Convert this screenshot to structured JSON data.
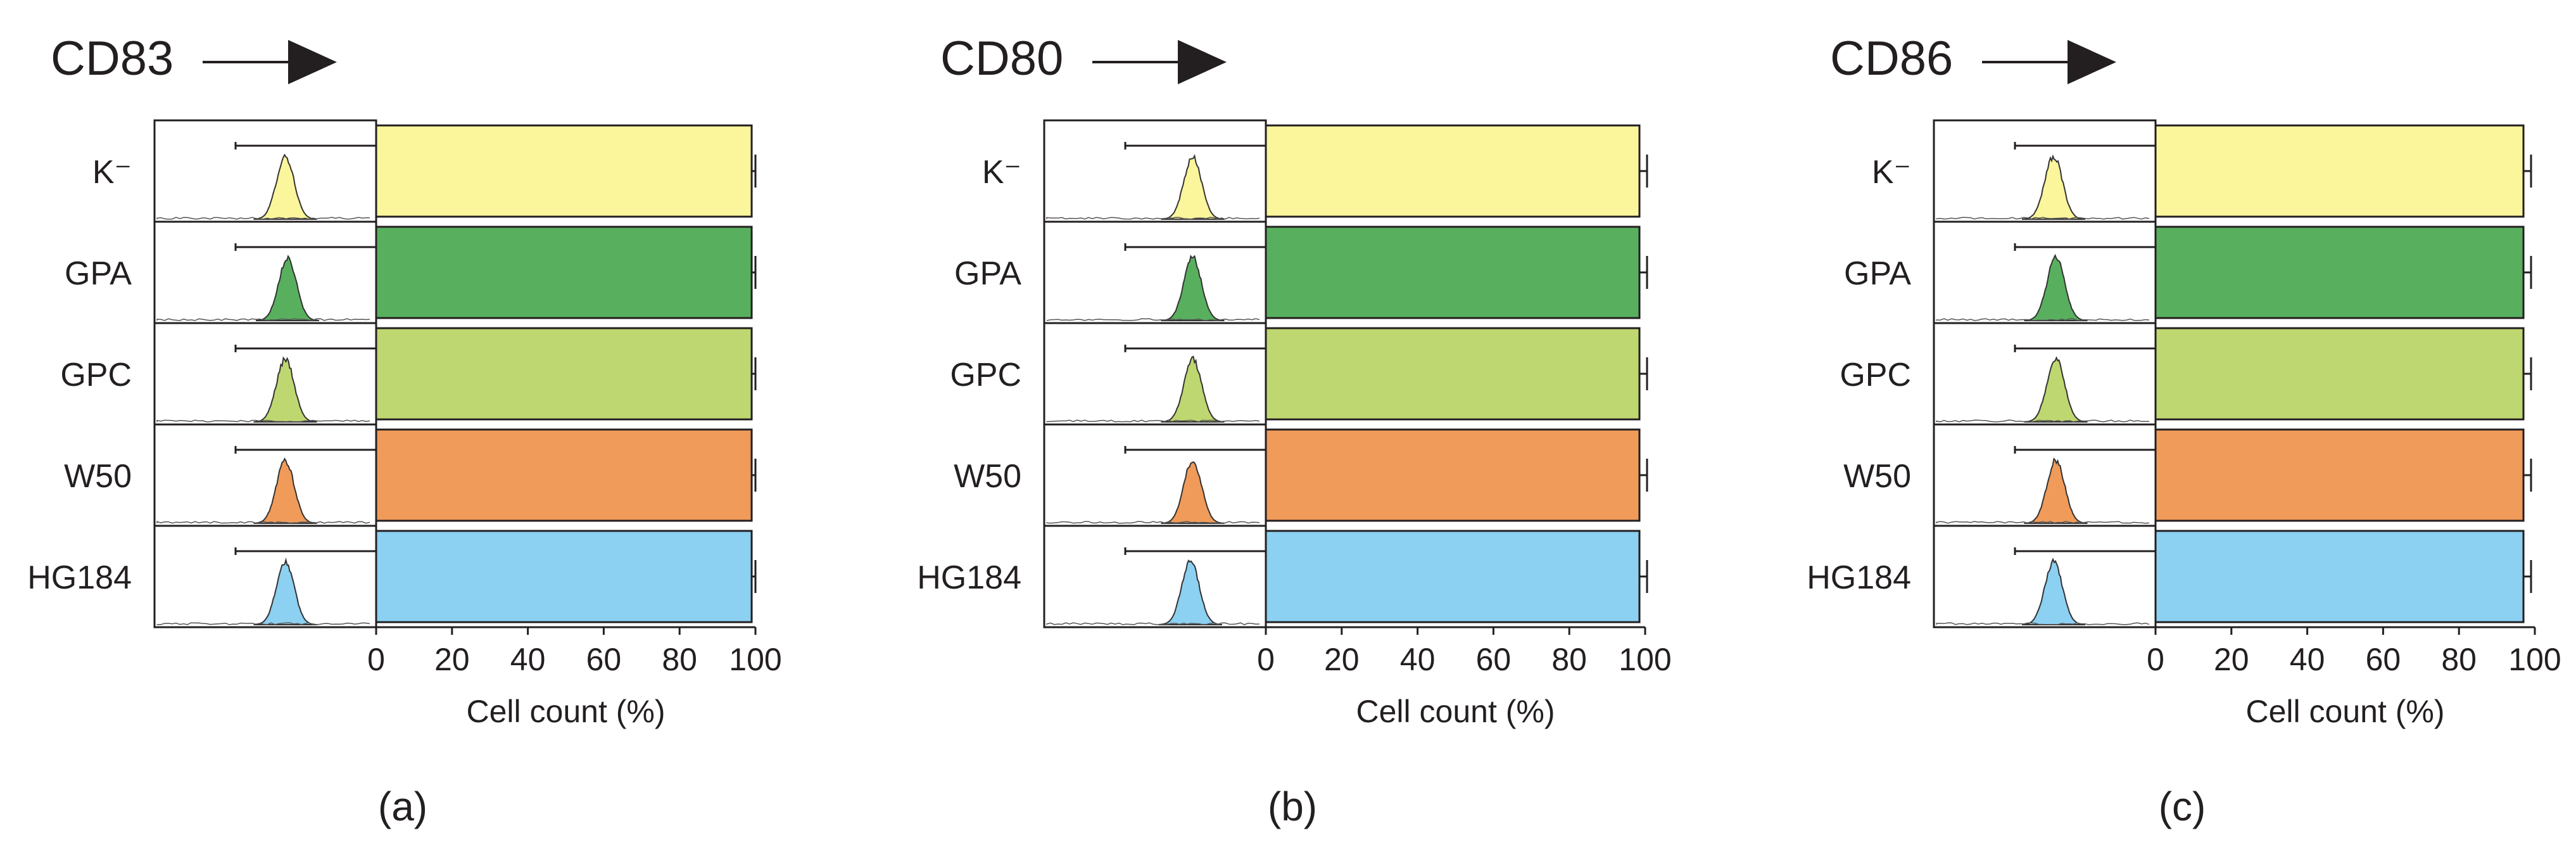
{
  "chart_data": [
    {
      "type": "bar",
      "orientation": "horizontal",
      "title": "CD83",
      "panel_label": "(a)",
      "xlabel": "Cell count (%)",
      "xlim": [
        0,
        100
      ],
      "xticks": [
        "0",
        "20",
        "40",
        "60",
        "80",
        "100"
      ],
      "categories": [
        "K⁻",
        "GPA",
        "GPC",
        "W50",
        "HG184"
      ],
      "values": [
        99,
        99,
        99,
        99,
        99
      ],
      "errors": [
        1,
        1,
        1,
        1,
        1
      ],
      "histogram_peaks": [
        0.59,
        0.6,
        0.59,
        0.59,
        0.59
      ]
    },
    {
      "type": "bar",
      "orientation": "horizontal",
      "title": "CD80",
      "panel_label": "(b)",
      "xlabel": "Cell count (%)",
      "xlim": [
        0,
        100
      ],
      "xticks": [
        "0",
        "20",
        "40",
        "60",
        "80",
        "100"
      ],
      "categories": [
        "K⁻",
        "GPA",
        "GPC",
        "W50",
        "HG184"
      ],
      "values": [
        98.5,
        98.5,
        98.5,
        98.5,
        98.5
      ],
      "errors": [
        2,
        2,
        2,
        2,
        2
      ],
      "histogram_peaks": [
        0.67,
        0.67,
        0.67,
        0.67,
        0.66
      ]
    },
    {
      "type": "bar",
      "orientation": "horizontal",
      "title": "CD86",
      "panel_label": "(c)",
      "xlabel": "Cell count (%)",
      "xlim": [
        0,
        100
      ],
      "xticks": [
        "0",
        "20",
        "40",
        "60",
        "80",
        "100"
      ],
      "categories": [
        "K⁻",
        "GPA",
        "GPC",
        "W50",
        "HG184"
      ],
      "values": [
        97,
        97,
        97,
        97,
        97
      ],
      "errors": [
        2,
        2,
        2,
        2,
        2
      ],
      "histogram_peaks": [
        0.54,
        0.55,
        0.55,
        0.55,
        0.54
      ]
    }
  ],
  "colors": {
    "series": [
      "#fbf59b",
      "#58b05e",
      "#bfd770",
      "#f09b5a",
      "#8cd0f2"
    ],
    "axis": "#231f20"
  }
}
